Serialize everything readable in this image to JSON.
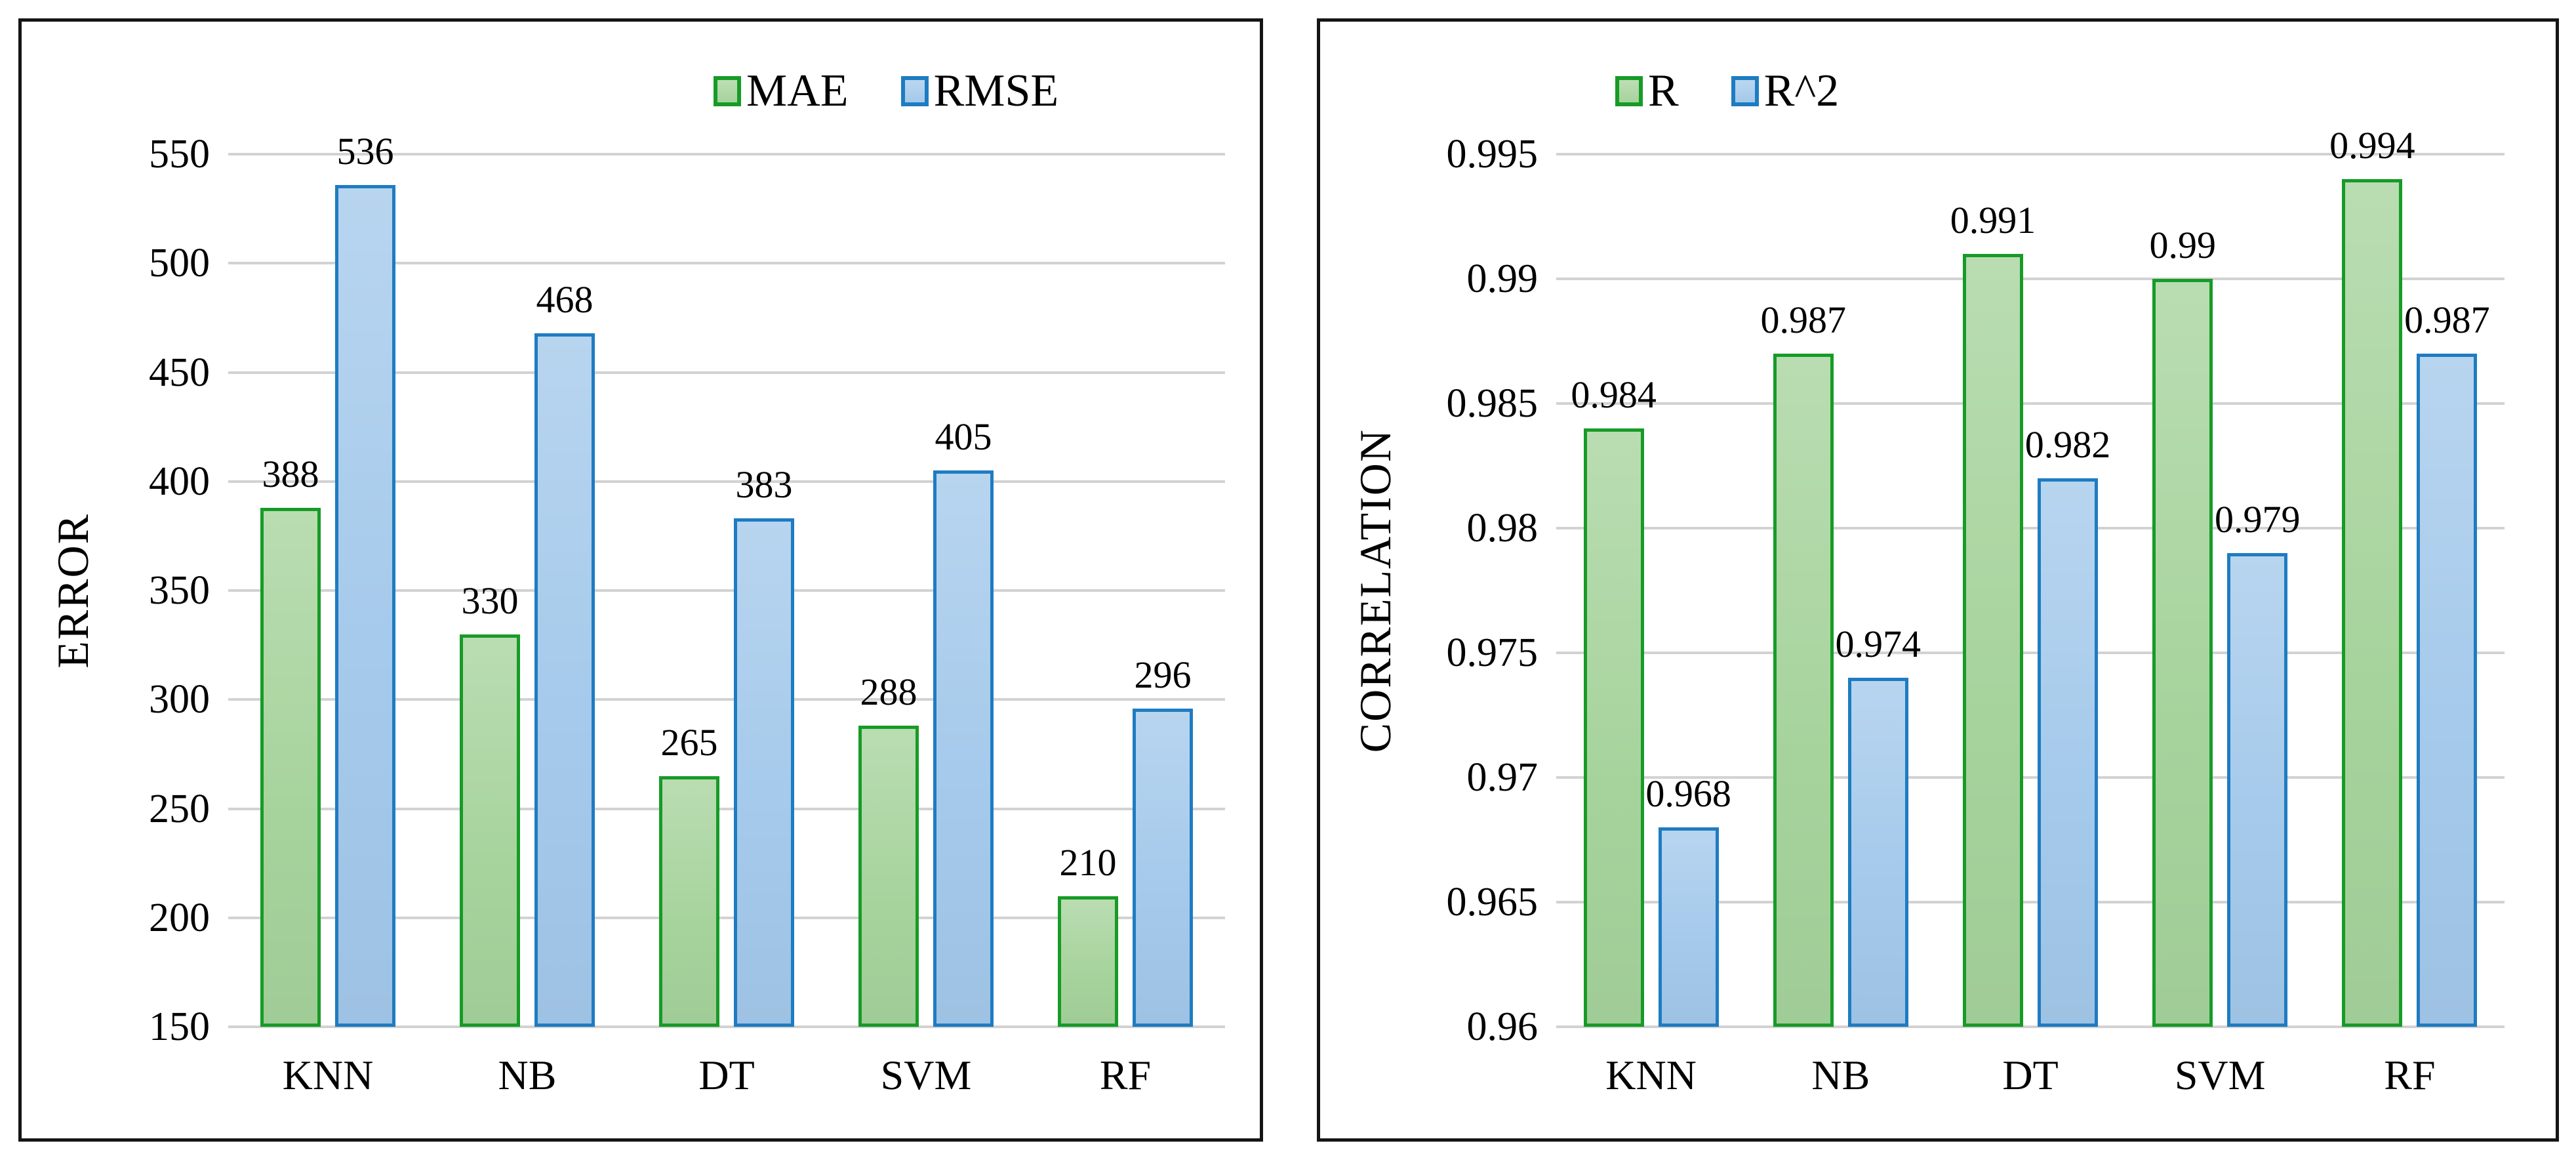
{
  "page": {
    "background": "#ffffff",
    "description": "Two grouped bar charts comparing machine-learning models"
  },
  "colors": {
    "green_fill": "#a6d39c",
    "green_border": "#179b27",
    "blue_fill": "#a4c9eb",
    "blue_border": "#1e7cc1",
    "gridline": "#d2d2d2",
    "panel_border": "#151515",
    "text": "#000000"
  },
  "chart_data": [
    {
      "type": "bar",
      "title": "",
      "xlabel": "",
      "ylabel": "ERROR",
      "categories": [
        "KNN",
        "NB",
        "DT",
        "SVM",
        "RF"
      ],
      "series": [
        {
          "name": "MAE",
          "color_key": "green",
          "values": [
            388,
            330,
            265,
            288,
            210
          ],
          "labels": [
            "388",
            "330",
            "265",
            "288",
            "210"
          ]
        },
        {
          "name": "RMSE",
          "color_key": "blue",
          "values": [
            536,
            468,
            383,
            405,
            296
          ],
          "labels": [
            "536",
            "468",
            "383",
            "405",
            "296"
          ]
        }
      ],
      "ylim": [
        150,
        550
      ],
      "y_ticks": {
        "values": [
          550,
          500,
          450,
          400,
          350,
          300,
          250,
          200,
          150
        ],
        "labels": [
          "550",
          "500",
          "450",
          "400",
          "350",
          "300",
          "250",
          "200",
          "150"
        ]
      },
      "legend_position": "top",
      "grid": "horizontal"
    },
    {
      "type": "bar",
      "title": "",
      "xlabel": "",
      "ylabel": "CORRELATION",
      "categories": [
        "KNN",
        "NB",
        "DT",
        "SVM",
        "RF"
      ],
      "series": [
        {
          "name": "R",
          "color_key": "green",
          "values": [
            0.984,
            0.987,
            0.991,
            0.99,
            0.994
          ],
          "labels": [
            "0.984",
            "0.987",
            "0.991",
            "0.99",
            "0.994"
          ]
        },
        {
          "name": "R^2",
          "color_key": "blue",
          "values": [
            0.968,
            0.974,
            0.982,
            0.979,
            0.987
          ],
          "labels": [
            "0.968",
            "0.974",
            "0.982",
            "0.979",
            "0.987"
          ]
        }
      ],
      "ylim": [
        0.96,
        0.995
      ],
      "y_ticks": {
        "values": [
          0.995,
          0.99,
          0.985,
          0.98,
          0.975,
          0.97,
          0.965,
          0.96
        ],
        "labels": [
          "0.995",
          "0.99",
          "0.985",
          "0.98",
          "0.975",
          "0.97",
          "0.965",
          "0.96"
        ]
      },
      "legend_position": "top",
      "grid": "horizontal"
    }
  ]
}
